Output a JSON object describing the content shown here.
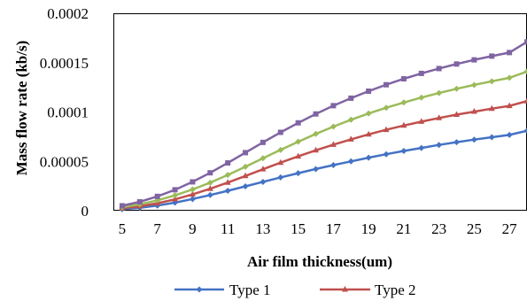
{
  "chart_data": {
    "type": "line",
    "xlabel": "Air film thickness(um)",
    "ylabel": "Mass flow rate (kb/s)",
    "xlim": [
      4.5,
      28
    ],
    "ylim": [
      0,
      0.0002
    ],
    "x_tick_labels": [
      "5",
      "7",
      "9",
      "11",
      "13",
      "15",
      "17",
      "19",
      "21",
      "23",
      "25",
      "27"
    ],
    "y_tick_labels": [
      "0",
      "0.00005",
      "0.0001",
      "0.00015",
      "0.0002"
    ],
    "x_ticks": [
      5,
      7,
      9,
      11,
      13,
      15,
      17,
      19,
      21,
      23,
      25,
      27
    ],
    "y_ticks": [
      0,
      5e-05,
      0.0001,
      0.00015,
      0.0002
    ],
    "grid": false,
    "legend_position": "bottom",
    "x": [
      5,
      6,
      7,
      8,
      9,
      10,
      11,
      12,
      13,
      14,
      15,
      16,
      17,
      18,
      19,
      20,
      21,
      22,
      23,
      24,
      25,
      26,
      27,
      28
    ],
    "series": [
      {
        "name": "Type 1",
        "color": "#4472C4",
        "marker": "diamond",
        "values": [
          1.6e-06,
          3e-06,
          5.2e-06,
          8.2e-06,
          1.18e-05,
          1.59e-05,
          2.02e-05,
          2.47e-05,
          2.92e-05,
          3.37e-05,
          3.8e-05,
          4.22e-05,
          4.62e-05,
          5e-05,
          5.37e-05,
          5.72e-05,
          6.05e-05,
          6.36e-05,
          6.66e-05,
          6.94e-05,
          7.2e-05,
          7.44e-05,
          7.68e-05,
          8.1e-05
        ]
      },
      {
        "name": "Type 2",
        "color": "#C0504D",
        "marker": "triangle",
        "values": [
          2.5e-06,
          4.5e-06,
          7.5e-06,
          1.15e-05,
          1.65e-05,
          2.22e-05,
          2.85e-05,
          3.52e-05,
          4.2e-05,
          4.87e-05,
          5.51e-05,
          6.12e-05,
          6.69e-05,
          7.23e-05,
          7.73e-05,
          8.2e-05,
          8.63e-05,
          9.02e-05,
          9.39e-05,
          9.73e-05,
          0.0001004,
          0.0001034,
          0.0001062,
          0.000111
        ]
      },
      {
        "color": "#9BBB59",
        "marker": "diamond",
        "values": [
          3.5e-06,
          6.5e-06,
          1.05e-05,
          1.55e-05,
          2.15e-05,
          2.84e-05,
          3.62e-05,
          4.45e-05,
          5.31e-05,
          6.16e-05,
          6.99e-05,
          7.78e-05,
          8.52e-05,
          9.21e-05,
          9.85e-05,
          0.0001043,
          0.0001096,
          0.0001146,
          0.0001192,
          0.0001235,
          0.0001274,
          0.0001311,
          0.0001346,
          0.000141
        ]
      },
      {
        "color": "#8064A2",
        "marker": "square",
        "values": [
          5e-06,
          9e-06,
          1.45e-05,
          2.12e-05,
          2.92e-05,
          3.84e-05,
          4.84e-05,
          5.88e-05,
          6.92e-05,
          7.94e-05,
          8.9e-05,
          9.8e-05,
          0.0001064,
          0.000114,
          0.0001211,
          0.0001276,
          0.0001336,
          0.0001391,
          0.000144,
          0.0001486,
          0.0001528,
          0.0001566,
          0.0001602,
          0.000171
        ]
      }
    ]
  }
}
